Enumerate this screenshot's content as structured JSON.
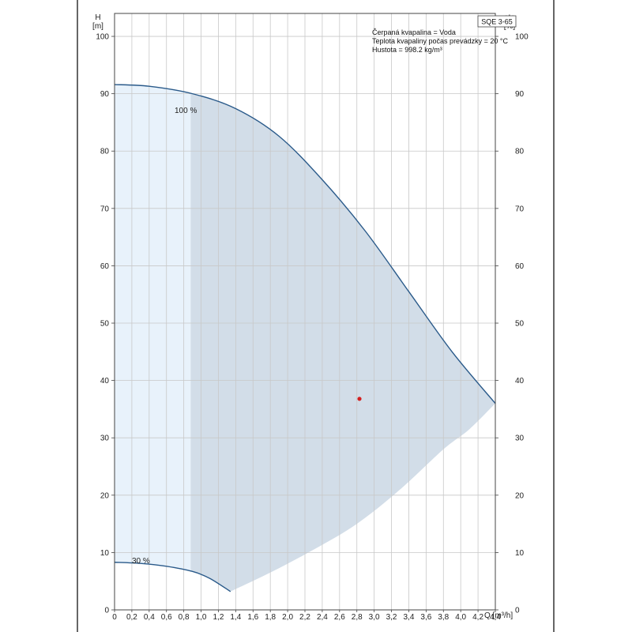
{
  "chart_data": {
    "type": "line",
    "model": "SQE 3-65",
    "info_lines": [
      "Čerpaná kvapalina = Voda",
      "Teplota kvapaliny počas prevádzky = 20 °C",
      "Hustota = 998.2 kg/m³"
    ],
    "ylabel": [
      "H",
      "[m]"
    ],
    "ylabel_right": [
      "eta",
      "[%]"
    ],
    "xlabel": "Q [m³/h]",
    "xlim": [
      0,
      4.4
    ],
    "ylim": [
      0,
      104
    ],
    "xticks": [
      "0",
      "0,2",
      "0,4",
      "0,6",
      "0,8",
      "1,0",
      "1,2",
      "1,4",
      "1,6",
      "1,8",
      "2,0",
      "2,2",
      "2,4",
      "2,6",
      "2,8",
      "3,0",
      "3,2",
      "3,4",
      "3,6",
      "3,8",
      "4,0",
      "4,2",
      "4,4"
    ],
    "yticks": [
      "0",
      "10",
      "20",
      "30",
      "40",
      "50",
      "60",
      "70",
      "80",
      "90",
      "100"
    ],
    "ytick_values": [
      0,
      10,
      20,
      30,
      40,
      50,
      60,
      70,
      80,
      90,
      100
    ],
    "grid": true,
    "colors": {
      "curve": "#2a5a8a",
      "region_light": "#e8f2fb",
      "region_dark": "#d2dde8",
      "grid": "#c8c8c8",
      "duty_point": "#d42020"
    },
    "series": [
      {
        "name": "100 %",
        "x": [
          0,
          0.4,
          0.9,
          1.4,
          1.9,
          2.4,
          2.9,
          3.4,
          3.9,
          4.4
        ],
        "y": [
          91.6,
          91.3,
          90.0,
          87.4,
          82.6,
          75.0,
          66.0,
          55.5,
          45.0,
          36.0
        ]
      },
      {
        "name": "30 %",
        "x": [
          0,
          0.3,
          0.6,
          0.9,
          1.1,
          1.34
        ],
        "y": [
          8.3,
          8.1,
          7.6,
          6.7,
          5.5,
          3.2
        ]
      }
    ],
    "lower_boundary": {
      "x": [
        1.34,
        1.8,
        2.3,
        2.8,
        3.3,
        3.8,
        4.1,
        4.4
      ],
      "y": [
        3.2,
        6.5,
        10.5,
        15.0,
        21.0,
        28.0,
        31.5,
        36.0
      ]
    },
    "region_split_x": 0.88,
    "duty_point": {
      "x": 2.83,
      "y": 36.8
    }
  }
}
